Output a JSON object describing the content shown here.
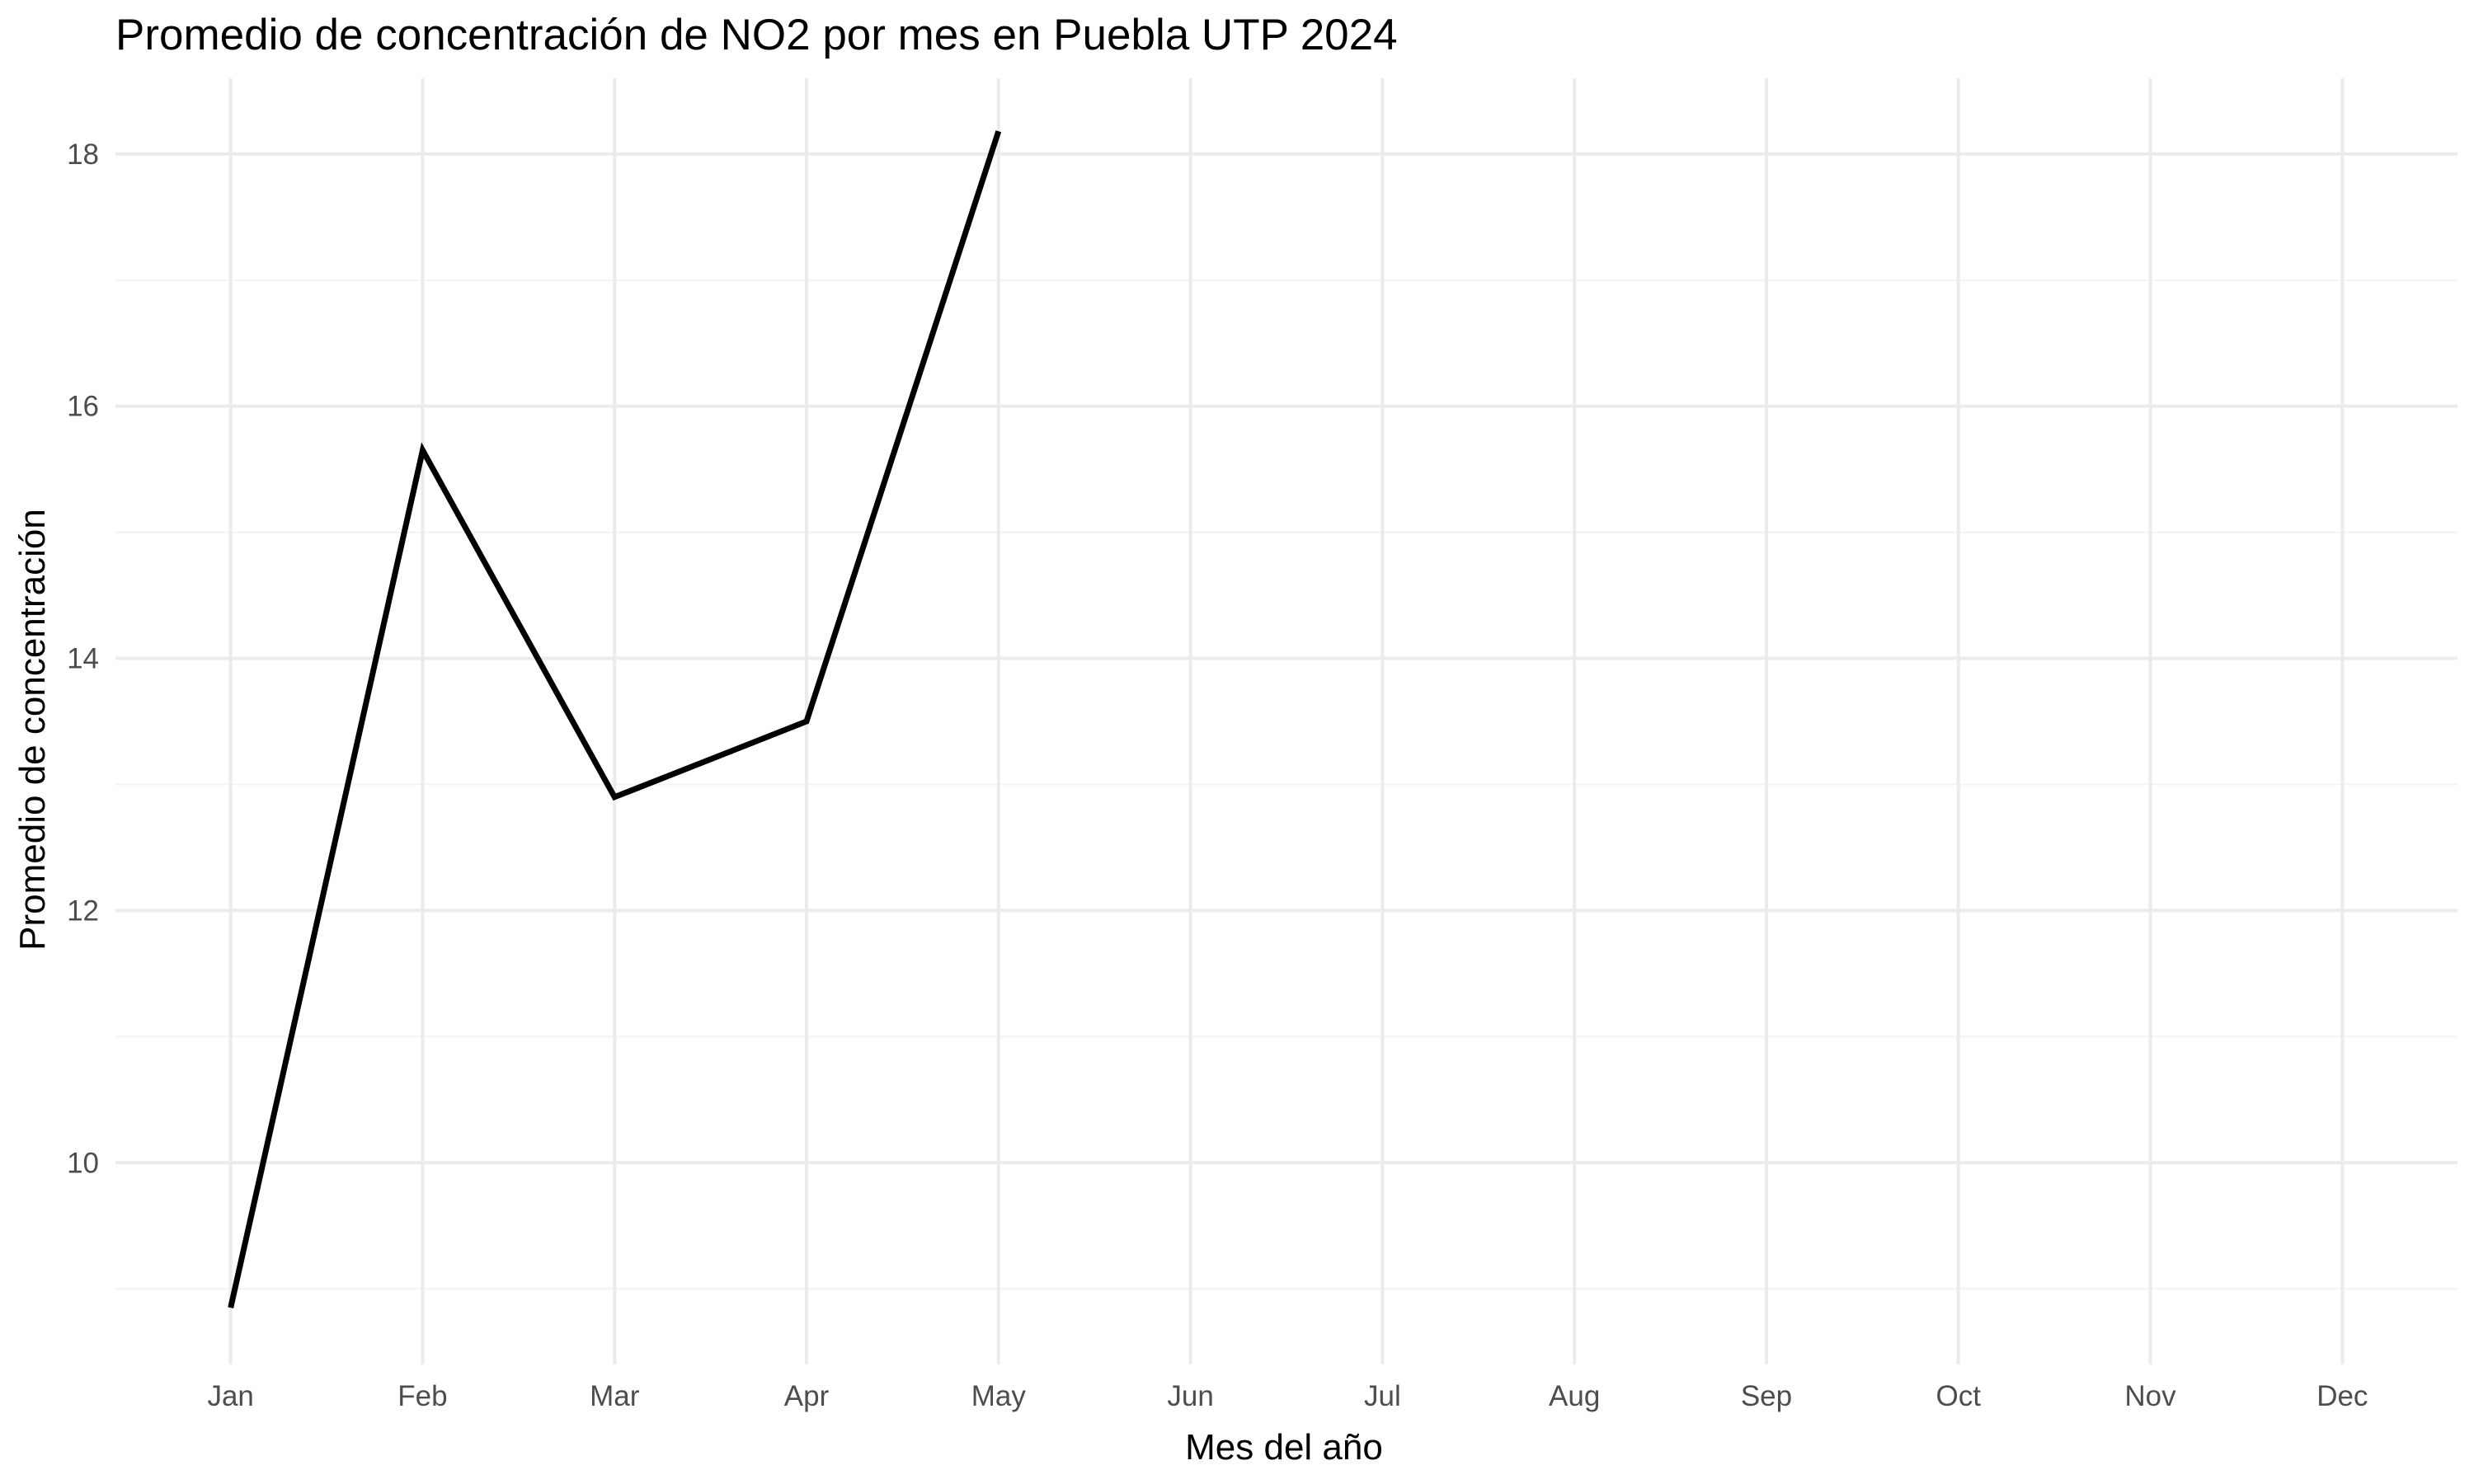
{
  "chart_data": {
    "type": "line",
    "title": "Promedio de concentración de NO2 por mes en Puebla UTP 2024",
    "xlabel": "Mes del año",
    "ylabel": "Promedio de concentración",
    "categories": [
      "Jan",
      "Feb",
      "Mar",
      "Apr",
      "May",
      "Jun",
      "Jul",
      "Aug",
      "Sep",
      "Oct",
      "Nov",
      "Dec"
    ],
    "series": [
      {
        "values": [
          8.85,
          15.65,
          12.9,
          13.5,
          18.18,
          null,
          null,
          null,
          null,
          null,
          null,
          null
        ],
        "color": "#000000"
      }
    ],
    "yticks": [
      10,
      12,
      14,
      16,
      18
    ],
    "ylim": [
      8.4,
      18.6
    ],
    "grid": true,
    "legend": "none",
    "colors": {
      "grid_major": "#ebebeb",
      "grid_minor": "#f3f3f3",
      "line": "#000000",
      "background": "#ffffff"
    }
  }
}
